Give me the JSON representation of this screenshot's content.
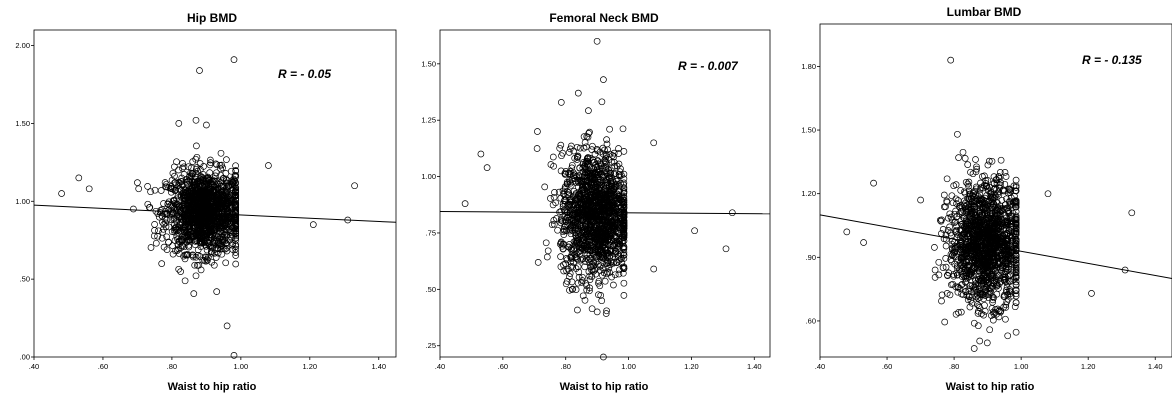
{
  "chart_data": [
    {
      "type": "scatter",
      "title": "Hip BMD",
      "xlabel": "Waist to hip ratio",
      "ylabel": "",
      "xlim": [
        0.4,
        1.45
      ],
      "ylim": [
        0.0,
        2.1
      ],
      "xticks": [
        ".40",
        ".60",
        ".80",
        "1.00",
        "1.20",
        "1.40"
      ],
      "xtick_values": [
        0.4,
        0.6,
        0.8,
        1.0,
        1.2,
        1.4
      ],
      "yticks": [
        ".00",
        ".50",
        "1.00",
        "1.50",
        "2.00"
      ],
      "ytick_values": [
        0.0,
        0.5,
        1.0,
        1.5,
        2.0
      ],
      "annotation": "R = - 0.05",
      "cluster": {
        "x_mean": 0.895,
        "x_sd": 0.055,
        "y_mean": 0.93,
        "y_sd": 0.13,
        "n": 1500
      },
      "outliers": [
        [
          0.48,
          1.05
        ],
        [
          0.53,
          1.15
        ],
        [
          0.56,
          1.08
        ],
        [
          0.88,
          1.84
        ],
        [
          0.98,
          1.91
        ],
        [
          0.82,
          1.5
        ],
        [
          0.87,
          1.52
        ],
        [
          0.9,
          1.49
        ],
        [
          0.93,
          0.42
        ],
        [
          0.96,
          0.2
        ],
        [
          0.98,
          0.01
        ],
        [
          1.21,
          0.85
        ],
        [
          1.31,
          0.88
        ],
        [
          1.33,
          1.1
        ],
        [
          1.08,
          1.23
        ],
        [
          0.7,
          1.12
        ]
      ],
      "fit_line": {
        "x": [
          0.4,
          1.45
        ],
        "y": [
          0.975,
          0.865
        ]
      }
    },
    {
      "type": "scatter",
      "title": "Femoral Neck  BMD",
      "xlabel": "Waist to hip ratio",
      "ylabel": "",
      "xlim": [
        0.4,
        1.45
      ],
      "ylim": [
        0.2,
        1.65
      ],
      "xticks": [
        ".40",
        ".60",
        ".80",
        "1.00",
        "1.20",
        "1.40"
      ],
      "xtick_values": [
        0.4,
        0.6,
        0.8,
        1.0,
        1.2,
        1.4
      ],
      "yticks": [
        ".25",
        ".50",
        ".75",
        "1.00",
        "1.25",
        "1.50"
      ],
      "ytick_values": [
        0.25,
        0.5,
        0.75,
        1.0,
        1.25,
        1.5
      ],
      "annotation": "R = - 0.007",
      "cluster": {
        "x_mean": 0.895,
        "x_sd": 0.055,
        "y_mean": 0.83,
        "y_sd": 0.14,
        "n": 1500
      },
      "outliers": [
        [
          0.48,
          0.88
        ],
        [
          0.53,
          1.1
        ],
        [
          0.55,
          1.04
        ],
        [
          0.9,
          1.6
        ],
        [
          0.92,
          1.43
        ],
        [
          0.84,
          1.37
        ],
        [
          0.92,
          0.2
        ],
        [
          1.21,
          0.76
        ],
        [
          1.31,
          0.68
        ],
        [
          1.33,
          0.84
        ],
        [
          1.08,
          1.15
        ],
        [
          0.71,
          1.2
        ],
        [
          1.08,
          0.59
        ]
      ],
      "fit_line": {
        "x": [
          0.4,
          1.45
        ],
        "y": [
          0.845,
          0.835
        ]
      }
    },
    {
      "type": "scatter",
      "title": "Lumbar  BMD",
      "xlabel": "Waist to hip ratio",
      "ylabel": "",
      "xlim": [
        0.4,
        1.45
      ],
      "ylim": [
        0.43,
        2.0
      ],
      "xticks": [
        ".40",
        ".60",
        ".80",
        "1.00",
        "1.20",
        "1.40"
      ],
      "xtick_values": [
        0.4,
        0.6,
        0.8,
        1.0,
        1.2,
        1.4
      ],
      "yticks": [
        ".60",
        ".90",
        "1.20",
        "1.50",
        "1.80"
      ],
      "ytick_values": [
        0.6,
        0.9,
        1.2,
        1.5,
        1.8
      ],
      "annotation": "R = - 0.135",
      "cluster": {
        "x_mean": 0.895,
        "x_sd": 0.055,
        "y_mean": 0.97,
        "y_sd": 0.14,
        "n": 1500
      },
      "outliers": [
        [
          0.48,
          1.02
        ],
        [
          0.53,
          0.97
        ],
        [
          0.56,
          1.25
        ],
        [
          0.79,
          1.83
        ],
        [
          0.81,
          1.48
        ],
        [
          1.21,
          0.73
        ],
        [
          1.31,
          0.84
        ],
        [
          1.33,
          1.11
        ],
        [
          0.96,
          0.53
        ],
        [
          1.08,
          1.2
        ],
        [
          0.7,
          1.17
        ],
        [
          0.86,
          0.47
        ]
      ],
      "fit_line": {
        "x": [
          0.4,
          1.45
        ],
        "y": [
          1.1,
          0.8
        ]
      }
    }
  ]
}
